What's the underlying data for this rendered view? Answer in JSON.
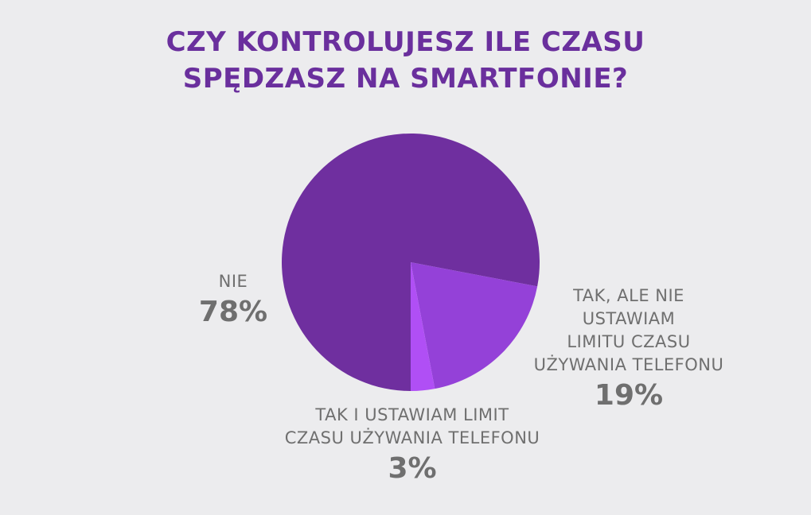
{
  "chart_data": {
    "type": "pie",
    "title_lines": [
      "CZY KONTROLUJESZ ILE CZASU",
      "SPĘDZASZ NA SMARTFONIE?"
    ],
    "slices": [
      {
        "label_lines": [
          "NIE"
        ],
        "value": 78,
        "value_label": "78%",
        "color": "#6f2f9f"
      },
      {
        "label_lines": [
          "TAK, ALE NIE",
          "USTAWIAM",
          "LIMITU CZASU",
          "UŻYWANIA TELEFONU"
        ],
        "value": 19,
        "value_label": "19%",
        "color": "#9441d8"
      },
      {
        "label_lines": [
          "TAK I USTAWIAM LIMIT",
          "CZASU UŻYWANIA TELEFONU"
        ],
        "value": 3,
        "value_label": "3%",
        "color": "#b04ff5"
      }
    ],
    "start_position": "bottom, sweeping counter-clockwise"
  },
  "colors": {
    "background": "#ececee",
    "title": "#6a2f9d",
    "labels": "#6f6f6f"
  }
}
